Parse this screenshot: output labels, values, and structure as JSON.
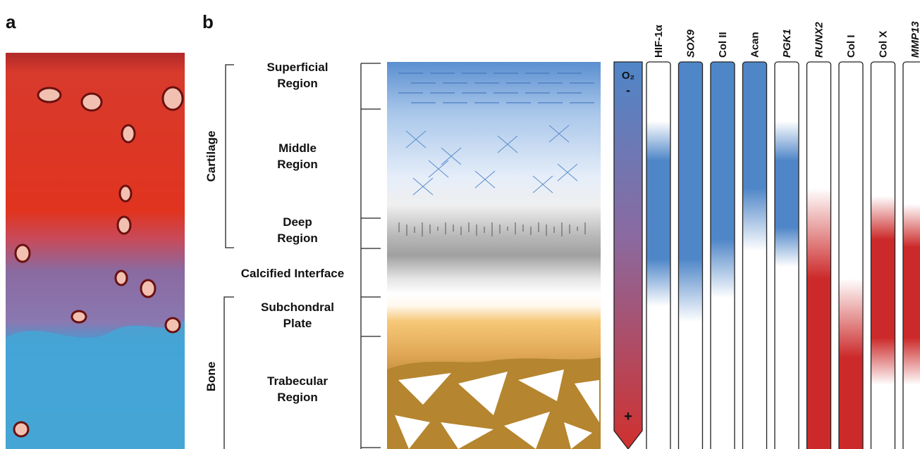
{
  "panels": {
    "a": "a",
    "b": "b"
  },
  "regions": [
    {
      "lines": [
        "Superficial",
        "Region"
      ]
    },
    {
      "lines": [
        "Middle",
        "Region"
      ]
    },
    {
      "lines": [
        "Deep",
        "Region"
      ]
    },
    {
      "lines": [
        "Calcified Interface"
      ]
    },
    {
      "lines": [
        "Subchondral",
        "Plate"
      ]
    },
    {
      "lines": [
        "Trabecular",
        "Region"
      ]
    }
  ],
  "groups": [
    "Cartilage",
    "Bone"
  ],
  "oxygen": {
    "label": "O₂",
    "top": "-",
    "bottom": "+"
  },
  "genes": [
    "HIF-1α",
    "SOX9",
    "Col II",
    "Acan",
    "PGK1",
    "RUNX2",
    "Col I",
    "Col X",
    "MMP13"
  ]
}
